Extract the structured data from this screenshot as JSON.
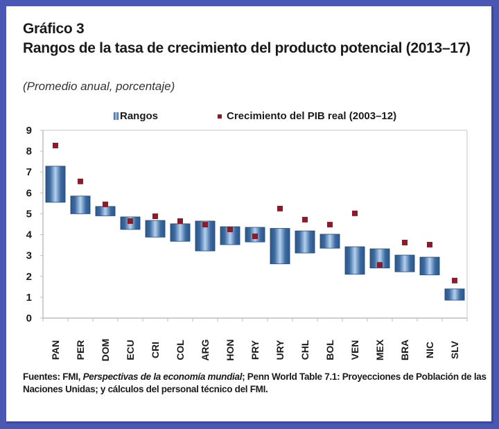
{
  "header": {
    "figure_label": "Gráfico 3",
    "title": "Rangos de la tasa de crecimiento del producto potencial (2013–17)",
    "subtitle": "(Promedio anual, porcentaje)"
  },
  "legend": {
    "ranges_label": "Rangos",
    "marker_label": "Crecimiento del PIB real (2003–12)"
  },
  "colors": {
    "frame": "#4a57b3",
    "bar_dark": "#2d5a8e",
    "bar_light": "#a8c7ea",
    "marker": "#8b1a2a"
  },
  "source": {
    "prefix": "Fuentes: FMI, ",
    "italic": "Perspectivas de la economía mundial",
    "suffix": "; Penn World Table 7.1: Proyecciones de Población de las Naciones Unidas; y cálculos del personal técnico del FMI."
  },
  "chart_data": {
    "type": "bar",
    "subtype": "floating-range with markers",
    "title": "Rangos de la tasa de crecimiento del producto potencial (2013–17)",
    "subtitle": "(Promedio anual, porcentaje)",
    "xlabel": "",
    "ylabel": "",
    "ylim": [
      0,
      9
    ],
    "yticks": [
      0,
      1,
      2,
      3,
      4,
      5,
      6,
      7,
      8,
      9
    ],
    "grid": false,
    "legend_position": "top-center",
    "categories": [
      "PAN",
      "PER",
      "DOM",
      "ECU",
      "CRI",
      "COL",
      "ARG",
      "HON",
      "PRY",
      "URY",
      "CHL",
      "BOL",
      "VEN",
      "MEX",
      "BRA",
      "NIC",
      "SLV"
    ],
    "series": [
      {
        "name": "Rangos",
        "kind": "range",
        "low": [
          5.55,
          5.0,
          4.9,
          4.25,
          3.88,
          3.68,
          3.22,
          3.52,
          3.65,
          2.6,
          3.12,
          3.35,
          2.1,
          2.4,
          2.22,
          2.07,
          0.86
        ],
        "high": [
          7.28,
          5.85,
          5.35,
          4.85,
          4.68,
          4.52,
          4.65,
          4.38,
          4.35,
          4.3,
          4.18,
          4.02,
          3.42,
          3.32,
          3.02,
          2.92,
          1.4
        ]
      },
      {
        "name": "Crecimiento del PIB real (2003–12)",
        "kind": "marker",
        "values": [
          8.27,
          6.55,
          5.45,
          4.65,
          4.88,
          4.65,
          4.48,
          4.25,
          3.92,
          5.25,
          4.72,
          4.48,
          5.02,
          2.55,
          3.62,
          3.52,
          1.8
        ]
      }
    ]
  }
}
